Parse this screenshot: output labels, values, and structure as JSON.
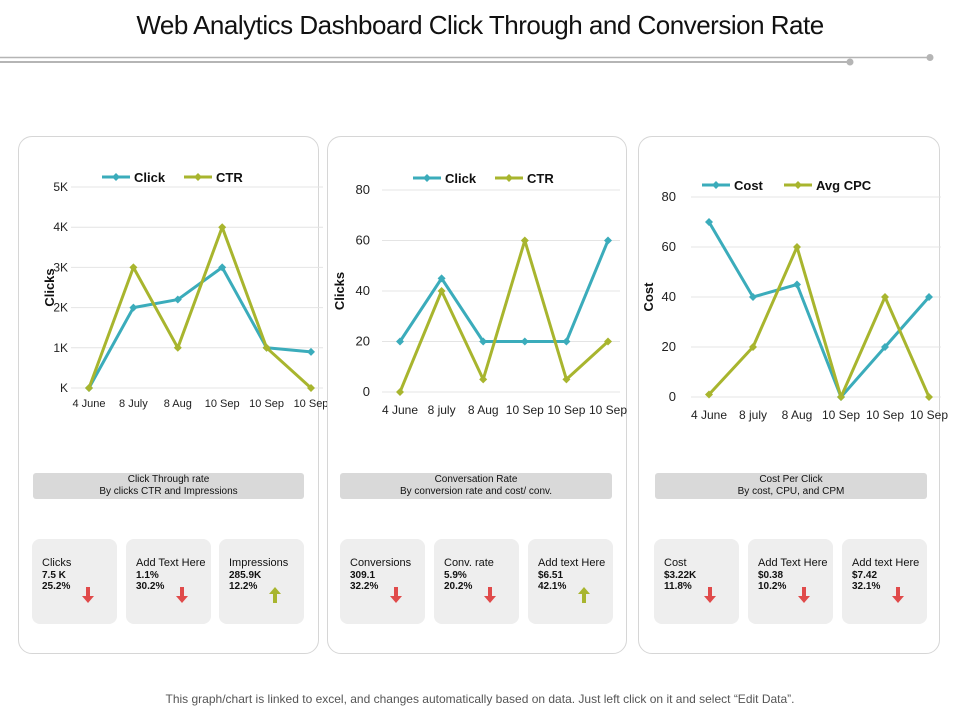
{
  "page": {
    "title": "Web Analytics Dashboard Click Through and Conversion Rate",
    "footer": "This graph/chart is linked to excel, and changes automatically based on data. Just left click on it and select “Edit Data”."
  },
  "colors": {
    "series_a": "#3bacbb",
    "series_b": "#a8b52e",
    "up_arrow": "#a8b52e",
    "down_arrow": "#e04a4a",
    "card_bg": "#eeeeee",
    "bar_bg": "#d9d9d9"
  },
  "chart_data": [
    {
      "type": "line",
      "title": "",
      "categories": [
        "4 June",
        "8 July",
        "8 Aug",
        "10 Sep",
        "10 Sep",
        "10 Sep"
      ],
      "series": [
        {
          "name": "Click",
          "values": [
            0,
            2000,
            2200,
            3000,
            1000,
            900
          ]
        },
        {
          "name": "CTR",
          "values": [
            0,
            3000,
            1000,
            4000,
            1000,
            0
          ]
        }
      ],
      "xlabel": "",
      "ylabel": "Clicks",
      "ylim": [
        0,
        5000
      ],
      "yticks": [
        0,
        1000,
        2000,
        3000,
        4000,
        5000
      ],
      "ytick_labels": [
        "K",
        "1K",
        "2K",
        "3K",
        "4K",
        "5K"
      ],
      "legend": "top-center",
      "grid": true
    },
    {
      "type": "line",
      "title": "",
      "categories": [
        "4 June",
        "8 july",
        "8 Aug",
        "10 Sep",
        "10 Sep",
        "10 Sep"
      ],
      "series": [
        {
          "name": "Click",
          "values": [
            20,
            45,
            20,
            20,
            20,
            60
          ]
        },
        {
          "name": "CTR",
          "values": [
            0,
            40,
            5,
            60,
            5,
            20
          ]
        }
      ],
      "xlabel": "",
      "ylabel": "Clicks",
      "ylim": [
        0,
        80
      ],
      "yticks": [
        0,
        20,
        40,
        60,
        80
      ],
      "ytick_labels": [
        "0",
        "20",
        "40",
        "60",
        "80"
      ],
      "legend": "top-center",
      "grid": true
    },
    {
      "type": "line",
      "title": "",
      "categories": [
        "4 June",
        "8 july",
        "8 Aug",
        "10 Sep",
        "10 Sep",
        "10 Sep"
      ],
      "series": [
        {
          "name": "Cost",
          "values": [
            70,
            40,
            45,
            0,
            20,
            40
          ]
        },
        {
          "name": "Avg CPC",
          "values": [
            1,
            20,
            60,
            0,
            40,
            0
          ]
        }
      ],
      "xlabel": "",
      "ylabel": "Cost",
      "ylim": [
        0,
        80
      ],
      "yticks": [
        0,
        20,
        40,
        60,
        80
      ],
      "ytick_labels": [
        "0",
        "20",
        "40",
        "60",
        "80"
      ],
      "legend": "top-center",
      "grid": true
    }
  ],
  "panels": [
    {
      "bar_line1": "Click Through rate",
      "bar_line2": "By clicks CTR and Impressions",
      "cards": [
        {
          "label": "Clicks",
          "value1": "7.5 K",
          "value2": "25.2%",
          "trend": "down"
        },
        {
          "label": "Add Text Here",
          "value1": "1.1%",
          "value2": "30.2%",
          "trend": "down"
        },
        {
          "label": "Impressions",
          "value1": "285.9K",
          "value2": "12.2%",
          "trend": "up"
        }
      ]
    },
    {
      "bar_line1": "Conversation Rate",
      "bar_line2": "By conversion rate and cost/ conv.",
      "cards": [
        {
          "label": "Conversions",
          "value1": "309.1",
          "value2": "32.2%",
          "trend": "down"
        },
        {
          "label": "Conv. rate",
          "value1": "5.9%",
          "value2": "20.2%",
          "trend": "down"
        },
        {
          "label": "Add text Here",
          "value1": "$6.51",
          "value2": "42.1%",
          "trend": "up"
        }
      ]
    },
    {
      "bar_line1": "Cost Per Click",
      "bar_line2": "By cost, CPU, and CPM",
      "cards": [
        {
          "label": "Cost",
          "value1": "$3.22K",
          "value2": "11.8%",
          "trend": "down"
        },
        {
          "label": "Add Text Here",
          "value1": "$0.38",
          "value2": "10.2%",
          "trend": "down"
        },
        {
          "label": "Add text Here",
          "value1": "$7.42",
          "value2": "32.1%",
          "trend": "down"
        }
      ]
    }
  ]
}
